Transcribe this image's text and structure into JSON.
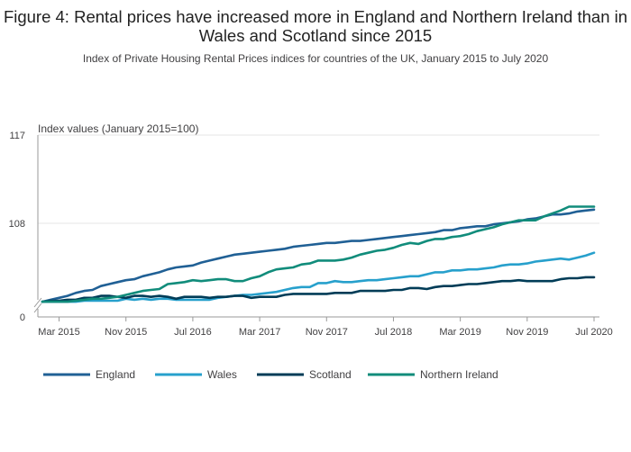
{
  "title": "Figure 4: Rental prices have increased more in England and Northern Ireland than in Wales and Scotland since 2015",
  "subtitle": "Index of Private Housing Rental Prices indices for countries of the UK, January 2015 to July 2020",
  "chart_data": {
    "type": "line",
    "ylabel": "Index values (January 2015=100)",
    "y_ticks": [
      "117",
      "108",
      "0"
    ],
    "y_tick_values": [
      117,
      108,
      99.5
    ],
    "ylim": [
      99.5,
      117
    ],
    "y_axis_break": true,
    "x_range": [
      0,
      66
    ],
    "x_ticks": [
      {
        "label": "Mar 2015",
        "idx": 2
      },
      {
        "label": "Nov 2015",
        "idx": 10
      },
      {
        "label": "Jul 2016",
        "idx": 18
      },
      {
        "label": "Mar 2017",
        "idx": 26
      },
      {
        "label": "Nov 2017",
        "idx": 34
      },
      {
        "label": "Jul 2018",
        "idx": 42
      },
      {
        "label": "Mar 2019",
        "idx": 50
      },
      {
        "label": "Nov 2019",
        "idx": 58
      },
      {
        "label": "Jul 2020",
        "idx": 66
      }
    ],
    "grid": true,
    "legend_position": "bottom",
    "series": [
      {
        "name": "England",
        "color": "#206095",
        "values": [
          100,
          100.2,
          100.4,
          100.6,
          100.9,
          101.1,
          101.2,
          101.6,
          101.8,
          102.0,
          102.2,
          102.3,
          102.6,
          102.8,
          103.0,
          103.3,
          103.5,
          103.6,
          103.7,
          104.0,
          104.2,
          104.4,
          104.6,
          104.8,
          104.9,
          105.0,
          105.1,
          105.2,
          105.3,
          105.4,
          105.6,
          105.7,
          105.8,
          105.9,
          106.0,
          106.0,
          106.1,
          106.2,
          106.2,
          106.3,
          106.4,
          106.5,
          106.6,
          106.7,
          106.8,
          106.9,
          107.0,
          107.1,
          107.3,
          107.3,
          107.5,
          107.6,
          107.7,
          107.7,
          107.9,
          108.0,
          108.1,
          108.2,
          108.4,
          108.5,
          108.7,
          108.9,
          108.9,
          109.0,
          109.2,
          109.3,
          109.4
        ]
      },
      {
        "name": "Wales",
        "color": "#27a0cc",
        "values": [
          100,
          100,
          100,
          100,
          100,
          100.1,
          100.1,
          100.1,
          100.1,
          100.1,
          100.3,
          100.2,
          100.3,
          100.2,
          100.3,
          100.3,
          100.2,
          100.2,
          100.2,
          100.2,
          100.2,
          100.4,
          100.5,
          100.6,
          100.7,
          100.7,
          100.8,
          100.9,
          101.0,
          101.2,
          101.4,
          101.5,
          101.5,
          101.9,
          101.9,
          102.1,
          102.0,
          102.0,
          102.1,
          102.2,
          102.2,
          102.3,
          102.4,
          102.5,
          102.6,
          102.6,
          102.8,
          103.0,
          103.0,
          103.2,
          103.2,
          103.3,
          103.3,
          103.4,
          103.5,
          103.7,
          103.8,
          103.8,
          103.9,
          104.1,
          104.2,
          104.3,
          104.4,
          104.3,
          104.5,
          104.7,
          105.0
        ]
      },
      {
        "name": "Scotland",
        "color": "#003c57",
        "values": [
          100,
          100.1,
          100.1,
          100.2,
          100.2,
          100.4,
          100.4,
          100.6,
          100.6,
          100.5,
          100.4,
          100.6,
          100.6,
          100.5,
          100.6,
          100.5,
          100.3,
          100.5,
          100.5,
          100.5,
          100.4,
          100.5,
          100.5,
          100.6,
          100.6,
          100.4,
          100.5,
          100.5,
          100.5,
          100.7,
          100.8,
          100.8,
          100.8,
          100.8,
          100.8,
          100.9,
          100.9,
          100.9,
          101.1,
          101.1,
          101.1,
          101.1,
          101.2,
          101.2,
          101.4,
          101.4,
          101.3,
          101.5,
          101.6,
          101.6,
          101.7,
          101.8,
          101.8,
          101.9,
          102.0,
          102.1,
          102.1,
          102.2,
          102.1,
          102.1,
          102.1,
          102.1,
          102.3,
          102.4,
          102.4,
          102.5,
          102.5
        ]
      },
      {
        "name": "Northern Ireland",
        "color": "#118c7b",
        "values": [
          100,
          100,
          100,
          100,
          100.1,
          100.2,
          100.3,
          100.3,
          100.4,
          100.5,
          100.7,
          100.9,
          101.1,
          101.2,
          101.3,
          101.8,
          101.9,
          102.0,
          102.2,
          102.1,
          102.2,
          102.3,
          102.3,
          102.1,
          102.1,
          102.4,
          102.6,
          103.0,
          103.3,
          103.4,
          103.5,
          103.8,
          103.9,
          104.2,
          104.2,
          104.2,
          104.3,
          104.5,
          104.8,
          105.0,
          105.2,
          105.3,
          105.5,
          105.8,
          106.0,
          105.9,
          106.2,
          106.4,
          106.4,
          106.6,
          106.7,
          106.9,
          107.2,
          107.4,
          107.6,
          107.9,
          108.1,
          108.3,
          108.3,
          108.3,
          108.7,
          109.0,
          109.3,
          109.7,
          109.7,
          109.7,
          109.7
        ]
      }
    ]
  }
}
